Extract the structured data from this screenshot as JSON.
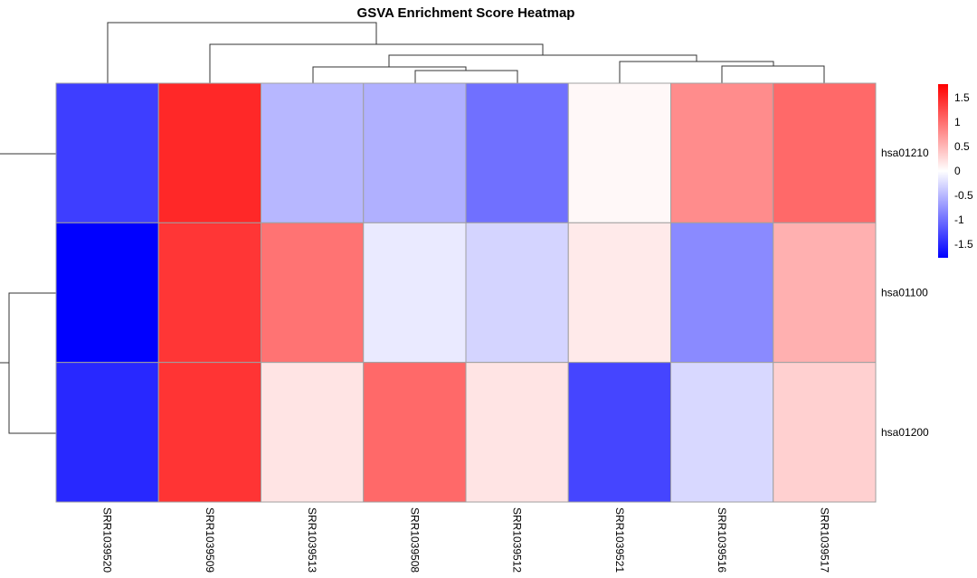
{
  "chart_data": {
    "type": "heatmap",
    "title": "GSVA Enrichment Score Heatmap",
    "columns": [
      "SRR1039520",
      "SRR1039509",
      "SRR1039513",
      "SRR1039508",
      "SRR1039512",
      "SRR1039521",
      "SRR1039516",
      "SRR1039517"
    ],
    "rows": [
      "hsa01210",
      "hsa01100",
      "hsa01200"
    ],
    "values": [
      [
        -1.35,
        1.5,
        -0.5,
        -0.55,
        -1.0,
        0.05,
        0.8,
        1.05
      ],
      [
        -1.78,
        1.4,
        0.98,
        -0.15,
        -0.3,
        0.15,
        -0.82,
        0.55
      ],
      [
        -1.5,
        1.42,
        0.19,
        1.05,
        0.19,
        -1.3,
        -0.27,
        0.33
      ]
    ],
    "color_scale": {
      "low": "#0000FF",
      "mid": "#FFFFFF",
      "high": "#FF0000",
      "range": [
        -1.78,
        1.78
      ]
    },
    "legend": {
      "ticks": [
        "1.5",
        "1",
        "0.5",
        "0",
        "-0.5",
        "-1",
        "-1.5"
      ],
      "tick_values": [
        1.5,
        1,
        0.5,
        0,
        -0.5,
        -1,
        -1.5
      ],
      "position": "right"
    },
    "column_dendrogram": true,
    "row_dendrogram": true
  }
}
